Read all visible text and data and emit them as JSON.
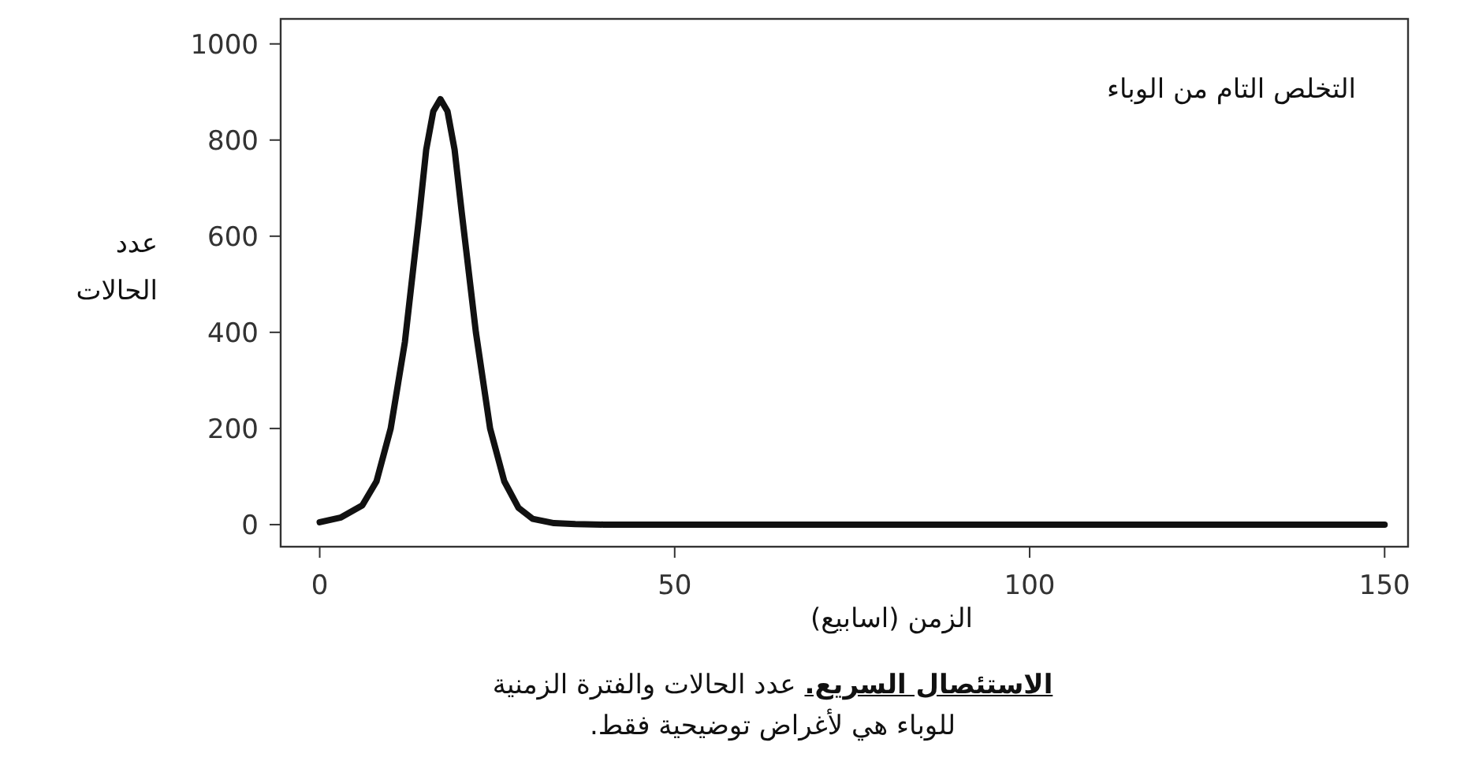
{
  "chart_data": {
    "type": "line",
    "title": "الاستئصال السريع.",
    "xlabel": "الزمن (اسابيع)",
    "ylabel": "عدد الحالات",
    "annotations": [
      "التخلص التام من الوباء",
      "عدد الحالات والفترة الزمنية للوباء هي لأغراض توضيحية فقط."
    ],
    "x": [
      0,
      3,
      6,
      8,
      10,
      12,
      14,
      15,
      16,
      17,
      18,
      19,
      20,
      22,
      24,
      26,
      28,
      30,
      33,
      36,
      40,
      60,
      100,
      150
    ],
    "series": [
      {
        "color": "#111111",
        "values": [
          5,
          15,
          40,
          90,
          200,
          380,
          640,
          780,
          860,
          885,
          860,
          780,
          650,
          400,
          200,
          90,
          35,
          12,
          3,
          1,
          0,
          0,
          0,
          0
        ]
      }
    ],
    "xlim": [
      -5.5,
      153.3
    ],
    "ylim": [
      -46,
      1052
    ],
    "xticks": [
      0,
      50,
      100,
      150
    ],
    "yticks": [
      0,
      200,
      400,
      600,
      800,
      1000
    ],
    "grid": false,
    "marker": "none",
    "line_style": "solid"
  }
}
